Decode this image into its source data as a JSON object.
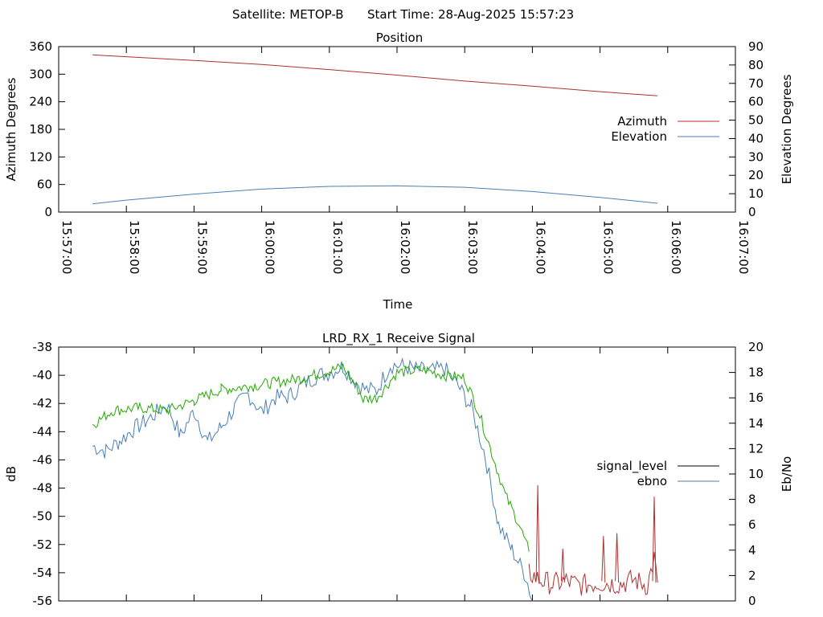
{
  "header": {
    "satellite_text": "Satellite: METOP-B",
    "start_time_text": "Start Time: 28-Aug-2025 15:57:23"
  },
  "chart_data": [
    {
      "type": "line",
      "title": "Position",
      "xlabel": "Time",
      "ylabel": "Azimuth Degrees",
      "y2label": "Elevation Degrees",
      "x_ticks": [
        "15:57:00",
        "15:58:00",
        "15:59:00",
        "16:00:00",
        "16:01:00",
        "16:02:00",
        "16:03:00",
        "16:04:00",
        "16:05:00",
        "16:06:00",
        "16:07:00"
      ],
      "xlim_minutes": [
        0,
        10
      ],
      "ylim": [
        0,
        360
      ],
      "y_ticks": [
        0,
        60,
        120,
        180,
        240,
        300,
        360
      ],
      "y2lim": [
        0,
        90
      ],
      "y2_ticks": [
        0,
        10,
        20,
        30,
        40,
        50,
        60,
        70,
        80,
        90
      ],
      "legend_position": "right-middle",
      "grid": false,
      "series": [
        {
          "name": "Azimuth",
          "axis": "y",
          "color": "#b03030",
          "x_minutes": [
            0.5,
            1.0,
            2.0,
            3.0,
            4.0,
            5.0,
            6.0,
            7.0,
            8.0,
            8.85
          ],
          "values": [
            342,
            338,
            330,
            321,
            310,
            298,
            285,
            274,
            262,
            253
          ]
        },
        {
          "name": "Elevation",
          "axis": "y2",
          "color": "#4a7fb5",
          "x_minutes": [
            0.5,
            1.0,
            2.0,
            3.0,
            4.0,
            5.0,
            6.0,
            7.0,
            8.0,
            8.85
          ],
          "values": [
            4.5,
            6.5,
            9.8,
            12.5,
            14.0,
            14.3,
            13.5,
            11.2,
            8.0,
            4.8
          ]
        }
      ]
    },
    {
      "type": "line",
      "title": "LRD_RX_1 Receive Signal",
      "xlabel": "",
      "ylabel": "dB",
      "y2label": "Eb/No",
      "xlim_minutes": [
        0,
        10
      ],
      "ylim": [
        -56,
        -38
      ],
      "y_ticks": [
        -56,
        -54,
        -52,
        -50,
        -48,
        -46,
        -44,
        -42,
        -40,
        -38
      ],
      "y2lim": [
        0,
        20
      ],
      "y2_ticks": [
        0,
        2,
        4,
        6,
        8,
        10,
        12,
        14,
        16,
        18,
        20
      ],
      "legend_position": "right-middle",
      "grid": false,
      "series": [
        {
          "name": "signal_level",
          "axis": "y",
          "color": "#000000",
          "segments": [
            {
              "color": "#22aa00",
              "x_minutes": [
                0.5,
                0.8,
                1.2,
                1.6,
                2.0,
                2.4,
                2.8,
                3.2,
                3.6,
                4.0,
                4.2,
                4.4,
                4.5,
                4.7,
                5.0,
                5.4,
                5.7,
                6.0,
                6.2,
                6.4,
                6.6,
                6.8,
                6.95
              ],
              "values": [
                -43.5,
                -42.5,
                -42.3,
                -42.5,
                -41.8,
                -41.0,
                -40.8,
                -40.5,
                -40.2,
                -39.7,
                -39.4,
                -40.8,
                -41.7,
                -41.6,
                -39.8,
                -39.6,
                -40.0,
                -40.2,
                -42.5,
                -45.5,
                -48.5,
                -50.5,
                -52.5
              ]
            },
            {
              "color": "#b03030",
              "x_minutes": [
                6.95,
                7.1,
                7.3,
                7.5,
                7.7,
                8.0,
                8.3,
                8.5,
                8.7,
                8.8,
                8.85
              ],
              "values": [
                -54.0,
                -54.5,
                -54.8,
                -54.6,
                -54.9,
                -54.7,
                -54.8,
                -54.5,
                -54.9,
                -53.0,
                -54.7
              ]
            }
          ],
          "spikes": [
            {
              "x_minute": 7.08,
              "value": -47.8
            },
            {
              "x_minute": 8.8,
              "value": -48.6
            },
            {
              "x_minute": 7.45,
              "value": -52.3
            },
            {
              "x_minute": 8.05,
              "value": -51.4
            },
            {
              "x_minute": 8.25,
              "value": -51.2
            }
          ]
        },
        {
          "name": "ebno",
          "axis": "y2",
          "color": "#4a7fb5",
          "x_minutes": [
            0.5,
            0.7,
            0.9,
            1.1,
            1.3,
            1.6,
            1.8,
            2.0,
            2.2,
            2.4,
            2.6,
            2.8,
            3.0,
            3.2,
            3.4,
            3.6,
            3.8,
            4.0,
            4.2,
            4.4,
            4.55,
            4.7,
            4.9,
            5.1,
            5.3,
            5.5,
            5.7,
            5.9,
            6.1,
            6.3,
            6.5,
            6.7,
            6.9,
            7.0
          ],
          "values": [
            12.2,
            11.8,
            12.6,
            13.5,
            14.2,
            15.5,
            13.0,
            15.0,
            12.5,
            13.7,
            15.2,
            16.3,
            14.9,
            16.0,
            16.1,
            17.0,
            17.7,
            18.0,
            18.5,
            17.2,
            16.6,
            16.6,
            18.6,
            18.5,
            18.2,
            18.1,
            18.3,
            17.0,
            15.2,
            11.5,
            6.0,
            4.0,
            2.0,
            0.0
          ]
        }
      ]
    }
  ]
}
